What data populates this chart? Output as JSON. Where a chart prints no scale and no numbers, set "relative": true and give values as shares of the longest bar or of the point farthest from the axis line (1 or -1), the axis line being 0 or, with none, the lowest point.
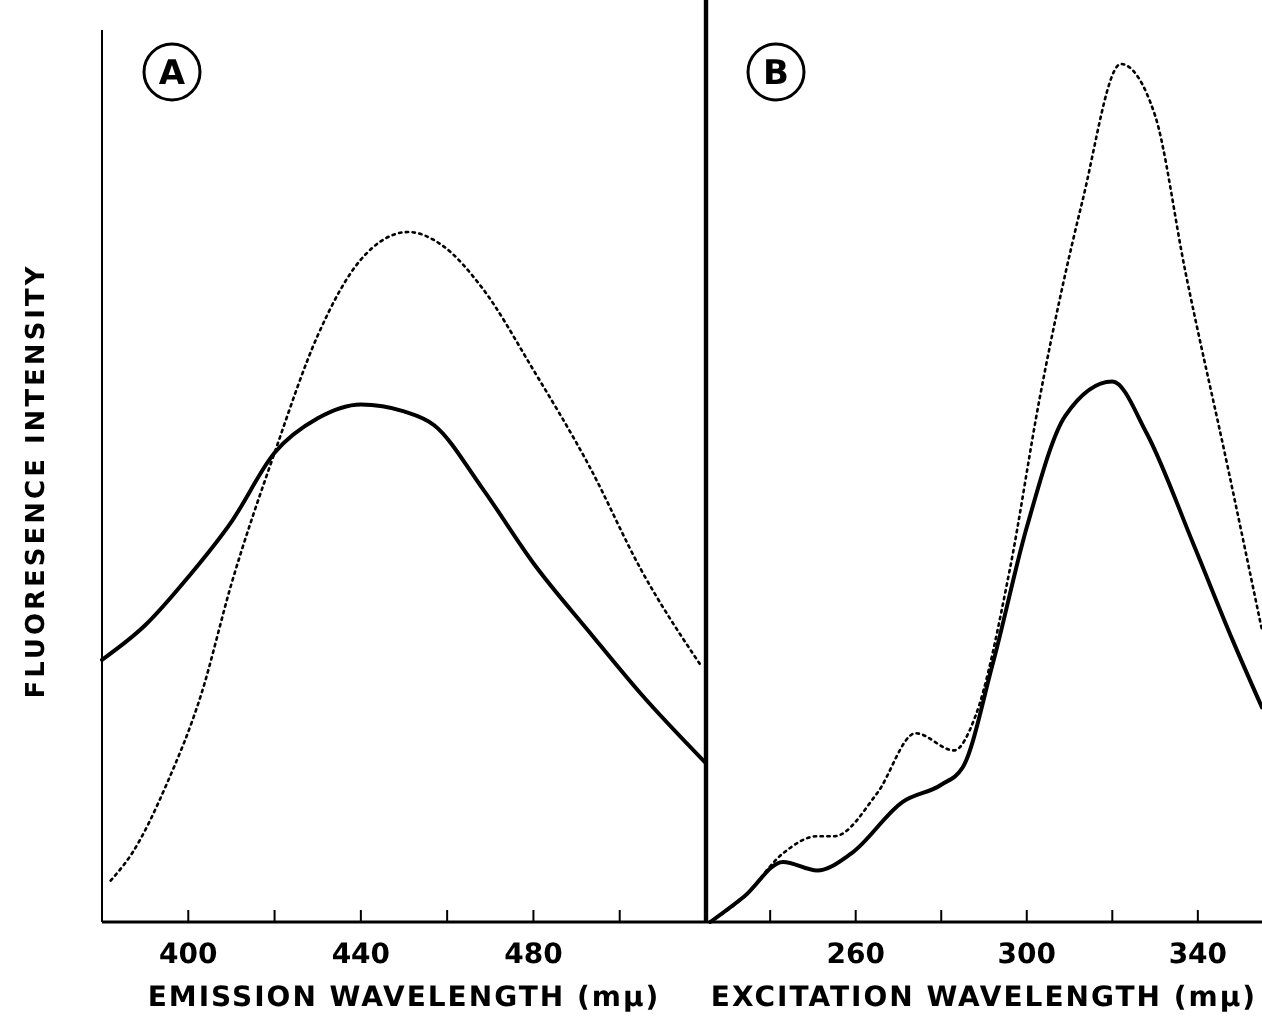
{
  "chart_data": [
    {
      "type": "line",
      "ylabel": "FLUORESENCE INTENSITY",
      "xlabel": "EMISSION WAVELENGTH (mμ)",
      "annotations": [
        "A"
      ],
      "relative": true,
      "tick_labels": "x",
      "grid": false,
      "xlim": [
        380,
        520
      ],
      "xticks": [
        400,
        {
          "value": 420,
          "label": null
        },
        440,
        {
          "value": 460,
          "label": null
        },
        480,
        {
          "value": 500,
          "label": null
        }
      ],
      "series": [
        {
          "color": "#000000",
          "line_style": "solid",
          "x": [
            380,
            390,
            400,
            410,
            420,
            430,
            440,
            450,
            457,
            468,
            480,
            493,
            505,
            520
          ],
          "values": [
            0.38,
            0.43,
            0.5,
            0.58,
            0.68,
            0.73,
            0.75,
            0.74,
            0.72,
            0.63,
            0.52,
            0.42,
            0.33,
            0.23
          ]
        },
        {
          "color": "#000000",
          "line_style": "dotted",
          "x": [
            382,
            387,
            395,
            403,
            410,
            420,
            430,
            440,
            451,
            459,
            468,
            480,
            493,
            505,
            519
          ],
          "values": [
            0.06,
            0.1,
            0.2,
            0.33,
            0.49,
            0.68,
            0.85,
            0.96,
            1,
            0.98,
            0.92,
            0.8,
            0.66,
            0.51,
            0.37
          ]
        }
      ]
    },
    {
      "type": "line",
      "xlabel": "EXCITATION WAVELENGTH (mμ)",
      "annotations": [
        "B"
      ],
      "relative": true,
      "tick_labels": "x",
      "grid": false,
      "xlim": [
        225,
        355
      ],
      "xticks": [
        {
          "value": 240,
          "label": null
        },
        260,
        {
          "value": 280,
          "label": null
        },
        300,
        {
          "value": 320,
          "label": null
        },
        340
      ],
      "series": [
        {
          "color": "#000000",
          "line_style": "solid",
          "x": [
            226,
            234,
            243,
            251,
            259,
            271,
            280,
            285,
            292,
            300,
            309,
            320,
            328,
            339,
            348,
            355
          ],
          "values": [
            0,
            0.03,
            0.07,
            0.06,
            0.08,
            0.14,
            0.16,
            0.18,
            0.3,
            0.46,
            0.59,
            0.63,
            0.57,
            0.44,
            0.33,
            0.25
          ]
        },
        {
          "color": "#000000",
          "line_style": "dotted",
          "x": [
            226,
            234,
            243,
            251,
            255,
            265,
            274,
            283,
            288,
            296,
            303,
            313,
            322,
            330,
            337,
            347,
            355
          ],
          "values": [
            0,
            0.03,
            0.08,
            0.1,
            0.1,
            0.15,
            0.22,
            0.2,
            0.24,
            0.41,
            0.61,
            0.84,
            1,
            0.94,
            0.76,
            0.53,
            0.34
          ]
        }
      ]
    }
  ]
}
